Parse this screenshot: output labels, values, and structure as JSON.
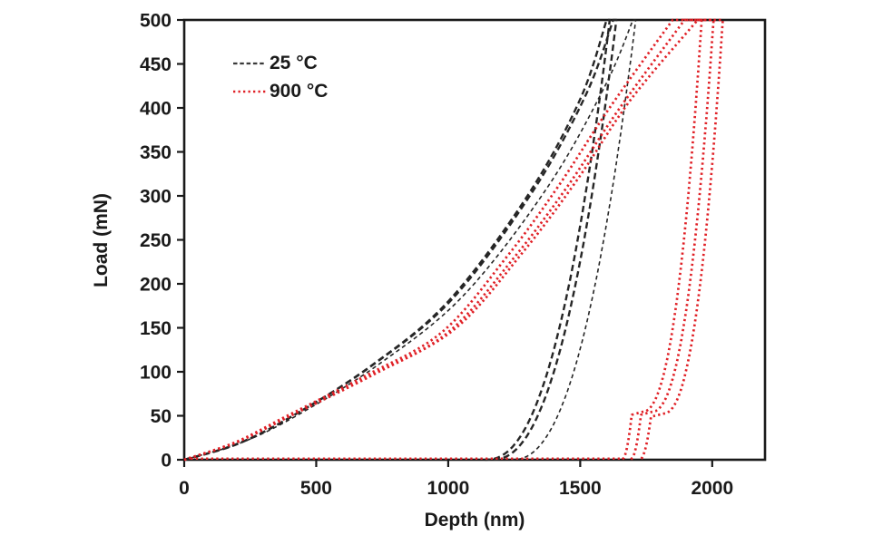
{
  "axes": {
    "x_title": "Depth (nm)",
    "y_title": "Load (mN)"
  },
  "legend": {
    "items": [
      {
        "label": "25 °C",
        "color": "#262626",
        "line_style": "dashed"
      },
      {
        "label": "900 °C",
        "color": "#e02026",
        "line_style": "dotted"
      }
    ]
  },
  "chart_data": {
    "type": "line",
    "title": "",
    "xlabel": "Depth (nm)",
    "ylabel": "Load (mN)",
    "xlim": [
      0,
      2200
    ],
    "ylim": [
      0,
      500
    ],
    "x_ticks": [
      0,
      500,
      1000,
      1500,
      2000
    ],
    "y_ticks": [
      0,
      50,
      100,
      150,
      200,
      250,
      300,
      350,
      400,
      450,
      500
    ],
    "grid": false,
    "legend_position": "top-left-inside",
    "max_load_mN": 500,
    "series": [
      {
        "name": "25 °C",
        "color": "#262626",
        "line_style": "dashed",
        "tests": [
          {
            "loading_anchors_nm_mN": [
              [
                0,
                0
              ],
              [
                200,
                18
              ],
              [
                400,
                48
              ],
              [
                700,
                105
              ],
              [
                1000,
                180
              ],
              [
                1300,
                300
              ],
              [
                1500,
                410
              ],
              [
                1600,
                500
              ]
            ],
            "hold_end_depth_nm": 1612,
            "unload_exponent": 0.43,
            "residual_depth_nm": 1140
          },
          {
            "loading_anchors_nm_mN": [
              [
                0,
                0
              ],
              [
                203,
                18
              ],
              [
                406,
                49
              ],
              [
                711,
                107
              ],
              [
                1016,
                183
              ],
              [
                1320,
                305
              ],
              [
                1523,
                416
              ],
              [
                1625,
                500
              ]
            ],
            "hold_end_depth_nm": 1637,
            "unload_exponent": 0.43,
            "residual_depth_nm": 1163
          },
          {
            "loading_anchors_nm_mN": [
              [
                0,
                0
              ],
              [
                212,
                19
              ],
              [
                425,
                50
              ],
              [
                744,
                110
              ],
              [
                1062,
                188
              ],
              [
                1381,
                312
              ],
              [
                1594,
                425
              ],
              [
                1700,
                500
              ]
            ],
            "hold_end_depth_nm": 1710,
            "unload_exponent": 0.43,
            "residual_depth_nm": 1240
          }
        ]
      },
      {
        "name": "900 °C",
        "color": "#e02026",
        "line_style": "dotted",
        "zero_load_tail": {
          "depth_from_nm": 25,
          "depth_to_nm": 1655,
          "load_mN": 1.3
        },
        "tests": [
          {
            "loading_anchors_nm_mN": [
              [
                0,
                0
              ],
              [
                195,
                20
              ],
              [
                390,
                50
              ],
              [
                683,
                95
              ],
              [
                976,
                145
              ],
              [
                1220,
                230
              ],
              [
                1415,
                310
              ],
              [
                1611,
                400
              ],
              [
                1850,
                500
              ]
            ],
            "hold_end_depth_nm": 1960,
            "unload_exponent": 0.42,
            "unload_hold": {
              "load_mN": 54,
              "from_depth_nm": 1730,
              "to_depth_nm": 1695
            },
            "residual_depth_nm": 1658
          },
          {
            "loading_anchors_nm_mN": [
              [
                0,
                0
              ],
              [
                200,
                20
              ],
              [
                400,
                50
              ],
              [
                700,
                95
              ],
              [
                1000,
                145
              ],
              [
                1250,
                230
              ],
              [
                1450,
                310
              ],
              [
                1650,
                400
              ],
              [
                1895,
                500
              ]
            ],
            "hold_end_depth_nm": 2005,
            "unload_exponent": 0.42,
            "unload_hold": {
              "load_mN": 54,
              "from_depth_nm": 1765,
              "to_depth_nm": 1730
            },
            "residual_depth_nm": 1690
          },
          {
            "loading_anchors_nm_mN": [
              [
                0,
                0
              ],
              [
                205,
                21
              ],
              [
                410,
                51
              ],
              [
                718,
                97
              ],
              [
                1026,
                149
              ],
              [
                1283,
                236
              ],
              [
                1488,
                318
              ],
              [
                1693,
                410
              ],
              [
                1945,
                500
              ]
            ],
            "hold_end_depth_nm": 2040,
            "unload_exponent": 0.42,
            "unload_hold": {
              "load_mN": 52,
              "from_depth_nm": 1810,
              "to_depth_nm": 1768
            },
            "residual_depth_nm": 1725
          }
        ]
      }
    ]
  }
}
